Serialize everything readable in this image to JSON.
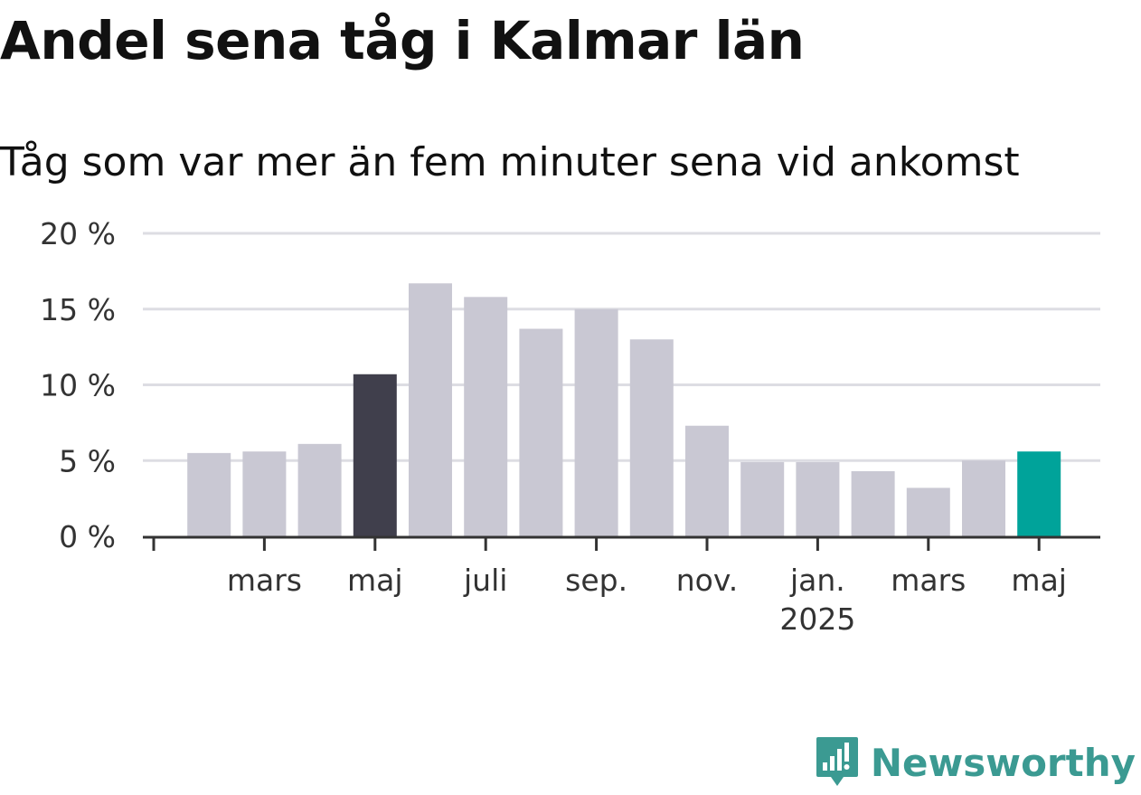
{
  "chart_data": {
    "type": "bar",
    "title": "Andel sena tåg i Kalmar län",
    "subtitle": "Tåg som var mer än fem minuter sena vid ankomst",
    "x": [
      "2024-01",
      "2024-02",
      "2024-03",
      "2024-04",
      "2024-05",
      "2024-06",
      "2024-07",
      "2024-08",
      "2024-09",
      "2024-10",
      "2024-11",
      "2024-12",
      "2025-01",
      "2025-02",
      "2025-03",
      "2025-04",
      "2025-05"
    ],
    "values": [
      null,
      5.5,
      5.6,
      6.1,
      10.7,
      16.7,
      15.8,
      13.7,
      15.0,
      13.0,
      7.3,
      4.9,
      4.9,
      4.3,
      3.2,
      5.0,
      5.6
    ],
    "ylim": [
      0,
      20
    ],
    "yticks": [
      0,
      5,
      10,
      15,
      20
    ],
    "ytick_labels": [
      "0 %",
      "5 %",
      "10 %",
      "15 %",
      "20 %"
    ],
    "xtick_labels": [
      {
        "x": "2024-03",
        "label": "mars"
      },
      {
        "x": "2024-05",
        "label": "maj"
      },
      {
        "x": "2024-07",
        "label": "juli"
      },
      {
        "x": "2024-09",
        "label": "sep."
      },
      {
        "x": "2024-11",
        "label": "nov."
      },
      {
        "x": "2025-01",
        "label": "jan.",
        "sublabel": "2025"
      },
      {
        "x": "2025-03",
        "label": "mars"
      },
      {
        "x": "2025-05",
        "label": "maj"
      }
    ],
    "colors": {
      "default": "#c9c8d3",
      "highlight_previous_year": "#403f4c",
      "highlight_latest": "#00a39a",
      "gridline": "#dddde3",
      "axis": "#333333",
      "tick_text": "#333333"
    },
    "highlight_previous_year": "2024-05",
    "highlight_latest": "2025-05",
    "grid": true,
    "legend": "none"
  },
  "brand": {
    "name": "Newsworthy",
    "icon": "newsworthy-logo-icon",
    "color": "#3b9a92"
  }
}
